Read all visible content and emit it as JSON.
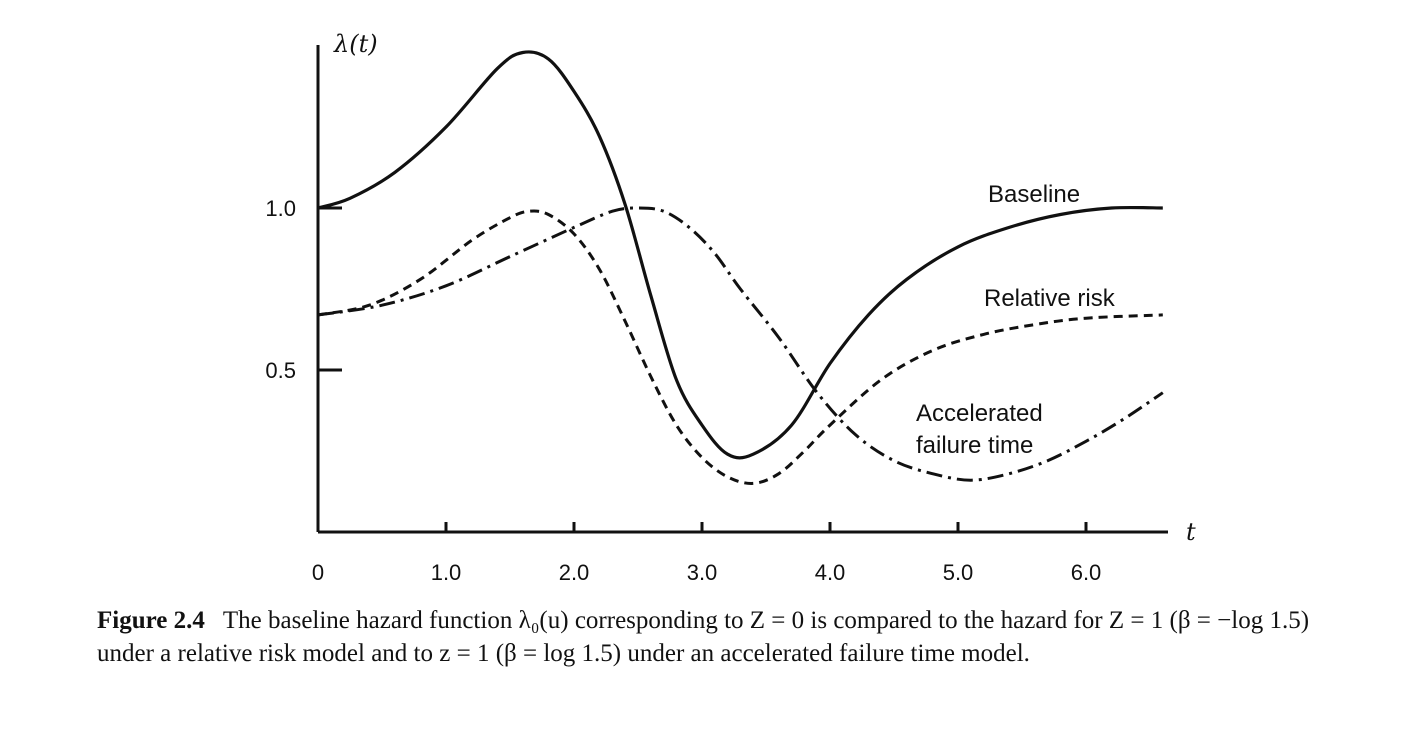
{
  "chart_data": {
    "type": "line",
    "title": "",
    "xlabel": "t",
    "ylabel": "λ(t)",
    "xlim": [
      0,
      6.6
    ],
    "ylim": [
      0,
      1.5
    ],
    "x_ticks": [
      {
        "value": 0,
        "label": "0"
      },
      {
        "value": 1.0,
        "label": "1.0"
      },
      {
        "value": 2.0,
        "label": "2.0"
      },
      {
        "value": 3.0,
        "label": "3.0"
      },
      {
        "value": 4.0,
        "label": "4.0"
      },
      {
        "value": 5.0,
        "label": "5.0"
      },
      {
        "value": 6.0,
        "label": "6.0"
      }
    ],
    "y_ticks": [
      {
        "value": 0.5,
        "label": "0.5"
      },
      {
        "value": 1.0,
        "label": "1.0"
      }
    ],
    "grid": false,
    "legend": "inline labels at right",
    "series": [
      {
        "name": "Baseline",
        "style": "solid",
        "label_lines": [
          "Baseline"
        ],
        "x": [
          0,
          0.25,
          0.6,
          1.0,
          1.4,
          1.6,
          1.8,
          2.0,
          2.2,
          2.4,
          2.6,
          2.8,
          3.0,
          3.2,
          3.4,
          3.7,
          4.0,
          4.3,
          4.6,
          5.0,
          5.4,
          5.8,
          6.2,
          6.6
        ],
        "y": [
          1.0,
          1.03,
          1.11,
          1.25,
          1.43,
          1.48,
          1.46,
          1.36,
          1.22,
          1.01,
          0.73,
          0.47,
          0.33,
          0.24,
          0.24,
          0.33,
          0.52,
          0.67,
          0.78,
          0.88,
          0.94,
          0.98,
          1.0,
          1.0
        ]
      },
      {
        "name": "Relative risk",
        "style": "dashed",
        "label_lines": [
          "Relative risk"
        ],
        "x": [
          0,
          0.4,
          0.8,
          1.2,
          1.5,
          1.65,
          1.8,
          2.0,
          2.2,
          2.4,
          2.6,
          2.8,
          3.0,
          3.2,
          3.4,
          3.6,
          3.8,
          4.0,
          4.4,
          4.8,
          5.2,
          5.6,
          6.0,
          6.6
        ],
        "y": [
          0.67,
          0.7,
          0.78,
          0.9,
          0.97,
          0.99,
          0.98,
          0.92,
          0.81,
          0.65,
          0.48,
          0.33,
          0.23,
          0.17,
          0.15,
          0.18,
          0.25,
          0.33,
          0.47,
          0.56,
          0.61,
          0.64,
          0.66,
          0.67
        ]
      },
      {
        "name": "Accelerated failure time",
        "style": "dashdot",
        "label_lines": [
          "Accelerated",
          "failure time"
        ],
        "x": [
          0,
          0.5,
          1.0,
          1.5,
          2.0,
          2.3,
          2.5,
          2.7,
          2.9,
          3.1,
          3.3,
          3.6,
          3.9,
          4.2,
          4.5,
          4.8,
          5.1,
          5.4,
          5.7,
          6.0,
          6.3,
          6.6
        ],
        "y": [
          0.67,
          0.7,
          0.76,
          0.85,
          0.94,
          0.99,
          1.0,
          0.99,
          0.94,
          0.86,
          0.75,
          0.6,
          0.43,
          0.3,
          0.22,
          0.18,
          0.16,
          0.18,
          0.22,
          0.28,
          0.35,
          0.43
        ]
      }
    ]
  },
  "caption": {
    "label": "Figure 2.4",
    "text": "The baseline hazard function λ₀(u) corresponding to Z = 0 is compared to the hazard for Z = 1 (β = −log 1.5) under a relative risk model and to z = 1 (β = log 1.5) under an accelerated failure time model."
  }
}
